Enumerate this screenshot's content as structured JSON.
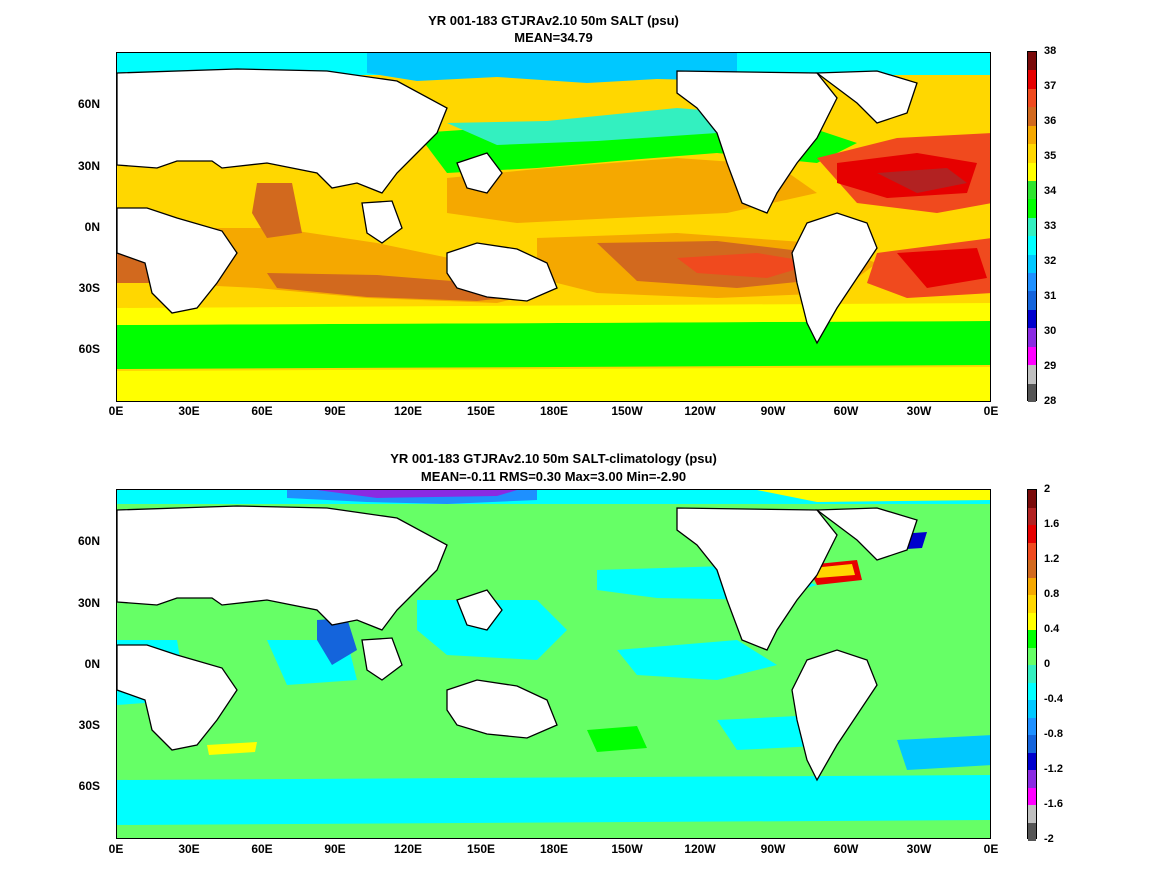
{
  "panels": [
    {
      "title_line1": "YR 001-183 GTJRAv2.10 50m SALT (psu)",
      "title_line2": "MEAN=34.79",
      "x_ticks": [
        "0E",
        "30E",
        "60E",
        "90E",
        "120E",
        "150E",
        "180E",
        "150W",
        "120W",
        "90W",
        "60W",
        "30W",
        "0E"
      ],
      "y_ticks": [
        "60N",
        "30N",
        "0N",
        "30S",
        "60S"
      ],
      "colorbar_labels": [
        "38",
        "37",
        "36",
        "35",
        "34",
        "33",
        "32",
        "31",
        "30",
        "29",
        "28"
      ],
      "colorbar_colors": [
        "#7a0a0a",
        "#e60000",
        "#f04a1e",
        "#d2691e",
        "#f5a800",
        "#ffd700",
        "#ffff00",
        "#2ee62e",
        "#00ff00",
        "#33f0c0",
        "#00ffff",
        "#00c8ff",
        "#1e90ff",
        "#1464dc",
        "#0000cd",
        "#8a2be2",
        "#ff00ff",
        "#c0c0c0",
        "#555555"
      ]
    },
    {
      "title_line1": "YR 001-183 GTJRAv2.10 50m SALT-climatology (psu)",
      "title_line2": "MEAN=-0.11   RMS=0.30   Max=3.00   Min=-2.90",
      "x_ticks": [
        "0E",
        "30E",
        "60E",
        "90E",
        "120E",
        "150E",
        "180E",
        "150W",
        "120W",
        "90W",
        "60W",
        "30W",
        "0E"
      ],
      "y_ticks": [
        "60N",
        "30N",
        "0N",
        "30S",
        "60S"
      ],
      "colorbar_labels": [
        "2",
        "1.6",
        "1.2",
        "0.8",
        "0.4",
        "0",
        "-0.4",
        "-0.8",
        "-1.2",
        "-1.6",
        "-2"
      ],
      "colorbar_colors": [
        "#7a0a0a",
        "#b22222",
        "#e60000",
        "#f04a1e",
        "#d2691e",
        "#f5a800",
        "#ffd700",
        "#ffff00",
        "#00ff00",
        "#66ff66",
        "#33f0c0",
        "#00ffff",
        "#00c8ff",
        "#1e90ff",
        "#1464dc",
        "#0000cd",
        "#8a2be2",
        "#ff00ff",
        "#c0c0c0",
        "#555555"
      ]
    }
  ]
}
